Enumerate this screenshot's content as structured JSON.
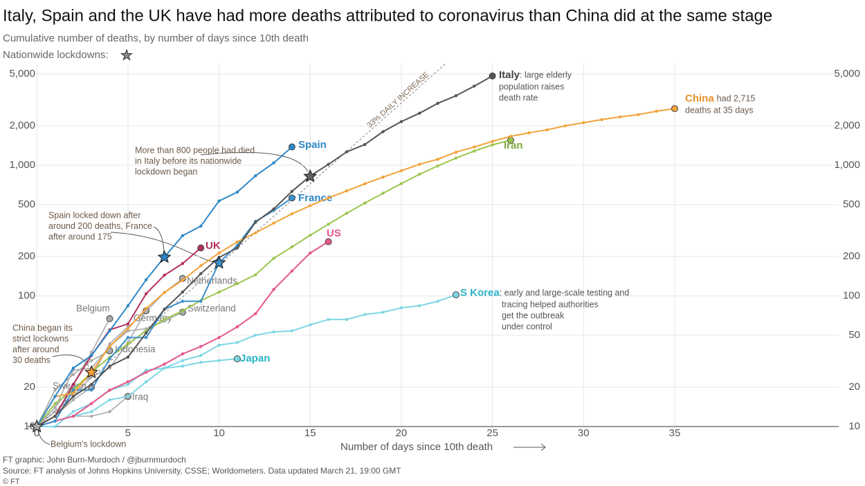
{
  "title": "Italy, Spain and the UK have had more deaths attributed to coronavirus than China did at the same stage",
  "subtitle": "Cumulative number of deaths, by number of days since 10th death",
  "legend_note": "Nationwide lockdowns:",
  "chart_data": {
    "type": "line",
    "x_label": "Number of days since 10th death",
    "log_scale": true,
    "grid": true,
    "x": [
      0,
      1,
      2,
      3,
      4,
      5,
      6,
      7,
      8,
      9,
      10,
      11,
      12,
      13,
      14,
      15,
      16,
      17,
      18,
      19,
      20,
      21,
      22,
      23,
      24,
      25,
      26,
      27,
      28,
      29,
      30,
      31,
      32,
      33,
      34,
      35
    ],
    "xlim": [
      -0.5,
      44
    ],
    "xticks": [
      0,
      5,
      10,
      15,
      20,
      25,
      30,
      35
    ],
    "ylim": [
      10,
      6000
    ],
    "yticks": [
      {
        "value": 5000,
        "label": "5,000"
      },
      {
        "value": 2000,
        "label": "2,000"
      },
      {
        "value": 1000,
        "label": "1,000"
      },
      500,
      200,
      100,
      20,
      10
    ],
    "y2lim": [
      10,
      6000
    ],
    "y2ticks": [
      {
        "value": 5000,
        "label": "5,000"
      },
      {
        "value": 2000,
        "label": "2,000"
      },
      {
        "value": 1000,
        "label": "1,000"
      },
      500,
      200,
      100,
      50,
      20,
      10
    ],
    "series": [
      {
        "name": "Netherlands",
        "color": "#aaaaaa",
        "values": [
          10,
          12,
          20,
          24,
          43,
          58,
          76,
          106,
          136,
          null,
          null,
          null,
          null,
          null,
          null,
          null,
          null,
          null,
          null,
          null,
          null,
          null,
          null,
          null,
          null,
          null,
          null,
          null,
          null,
          null,
          null,
          null,
          null,
          null,
          null,
          null
        ]
      },
      {
        "name": "Belgium",
        "color": "#aaaaaa",
        "values": [
          10,
          14,
          21,
          37,
          67,
          null,
          null,
          null,
          null,
          null,
          null,
          null,
          null,
          null,
          null,
          null,
          null,
          null,
          null,
          null,
          null,
          null,
          null,
          null,
          null,
          null,
          null,
          null,
          null,
          null,
          null,
          null,
          null,
          null,
          null,
          null
        ]
      },
      {
        "name": "Germany",
        "color": "#aaaaaa",
        "values": [
          10,
          13,
          17,
          24,
          28,
          44,
          77,
          null,
          null,
          null,
          null,
          null,
          null,
          null,
          null,
          null,
          null,
          null,
          null,
          null,
          null,
          null,
          null,
          null,
          null,
          null,
          null,
          null,
          null,
          null,
          null,
          null,
          null,
          null,
          null,
          null
        ]
      },
      {
        "name": "Switzerland",
        "color": "#aaaaaa",
        "values": [
          10,
          14,
          27,
          28,
          41,
          54,
          56,
          64,
          75,
          null,
          null,
          null,
          null,
          null,
          null,
          null,
          null,
          null,
          null,
          null,
          null,
          null,
          null,
          null,
          null,
          null,
          null,
          null,
          null,
          null,
          null,
          null,
          null,
          null,
          null,
          null
        ]
      },
      {
        "name": "Indonesia",
        "color": "#aaaaaa",
        "values": [
          10,
          19,
          25,
          32,
          38,
          null,
          null,
          null,
          null,
          null,
          null,
          null,
          null,
          null,
          null,
          null,
          null,
          null,
          null,
          null,
          null,
          null,
          null,
          null,
          null,
          null,
          null,
          null,
          null,
          null,
          null,
          null,
          null,
          null,
          null,
          null
        ]
      },
      {
        "name": "Sweden",
        "color": "#aaaaaa",
        "values": [
          10,
          12,
          16,
          20,
          null,
          null,
          null,
          null,
          null,
          null,
          null,
          null,
          null,
          null,
          null,
          null,
          null,
          null,
          null,
          null,
          null,
          null,
          null,
          null,
          null,
          null,
          null,
          null,
          null,
          null,
          null,
          null,
          null,
          null,
          null,
          null
        ]
      },
      {
        "name": "Iraq",
        "color": "#aaaaaa",
        "values": [
          10,
          11,
          12,
          12,
          13,
          17,
          null,
          null,
          null,
          null,
          null,
          null,
          null,
          null,
          null,
          null,
          null,
          null,
          null,
          null,
          null,
          null,
          null,
          null,
          null,
          null,
          null,
          null,
          null,
          null,
          null,
          null,
          null,
          null,
          null,
          null
        ]
      },
      {
        "name": "Japan",
        "color": "#7dd6e4",
        "label_color": "#2bb3c6",
        "values": [
          10,
          10,
          13,
          15,
          19,
          21,
          27,
          28,
          29,
          31,
          32,
          33,
          null,
          null,
          null,
          null,
          null,
          null,
          null,
          null,
          null,
          null,
          null,
          null,
          null,
          null,
          null,
          null,
          null,
          null,
          null,
          null,
          null,
          null,
          null,
          null
        ]
      },
      {
        "name": "S Korea",
        "color": "#7dd6e4",
        "label_color": "#2bb3c6",
        "note": [
          ": early and large-scale testing and",
          "tracing helped authorities",
          "get the outbreak",
          "under control"
        ],
        "values": [
          10,
          11,
          12,
          13,
          16,
          17,
          22,
          28,
          32,
          35,
          42,
          44,
          50,
          53,
          54,
          60,
          66,
          66,
          72,
          75,
          81,
          84,
          91,
          102,
          null,
          null,
          null,
          null,
          null,
          null,
          null,
          null,
          null,
          null,
          null,
          null
        ]
      },
      {
        "name": "Iran",
        "color": "#9cc54e",
        "label_color": "#7fa83a",
        "values": [
          10,
          15,
          19,
          26,
          34,
          43,
          54,
          66,
          77,
          92,
          107,
          124,
          145,
          194,
          237,
          291,
          354,
          429,
          514,
          611,
          724,
          853,
          988,
          1135,
          1284,
          1433,
          1556,
          null,
          null,
          null,
          null,
          null,
          null,
          null,
          null,
          null
        ]
      },
      {
        "name": "US",
        "color": "#e6568c",
        "label_color": "#e6568c",
        "values": [
          10,
          11,
          12,
          15,
          19,
          22,
          26,
          30,
          36,
          41,
          48,
          58,
          73,
          112,
          155,
          213,
          260,
          null,
          null,
          null,
          null,
          null,
          null,
          null,
          null,
          null,
          null,
          null,
          null,
          null,
          null,
          null,
          null,
          null,
          null,
          null
        ]
      },
      {
        "name": "UK",
        "color": "#b3305e",
        "label_color": "#b3305e",
        "values": [
          10,
          12,
          21,
          35,
          55,
          61,
          104,
          144,
          177,
          233,
          null,
          null,
          null,
          null,
          null,
          null,
          null,
          null,
          null,
          null,
          null,
          null,
          null,
          null,
          null,
          null,
          null,
          null,
          null,
          null,
          null,
          null,
          null,
          null,
          null,
          null
        ]
      },
      {
        "name": "France",
        "color": "#3a8fcc",
        "label_color": "#2c86c6",
        "values": [
          10,
          11,
          19,
          19,
          33,
          48,
          48,
          79,
          91,
          91,
          179,
          244,
          372,
          450,
          562,
          null,
          null,
          null,
          null,
          null,
          null,
          null,
          null,
          null,
          null,
          null,
          null,
          null,
          null,
          null,
          null,
          null,
          null,
          null,
          null,
          null
        ]
      },
      {
        "name": "China",
        "color": "#f2a33a",
        "label_color": "#e8912b",
        "note": [
          "had 2,715",
          "deaths at 35 days"
        ],
        "values": [
          10,
          17,
          18,
          26,
          41,
          56,
          80,
          106,
          132,
          170,
          213,
          259,
          304,
          361,
          425,
          490,
          563,
          636,
          722,
          811,
          908,
          1016,
          1113,
          1259,
          1380,
          1523,
          1665,
          1770,
          1868,
          2004,
          2118,
          2236,
          2345,
          2442,
          2592,
          2715
        ]
      },
      {
        "name": "Spain",
        "color": "#2e88c8",
        "label_color": "#2c86c6",
        "values": [
          10,
          17,
          28,
          35,
          54,
          84,
          133,
          198,
          289,
          342,
          533,
          623,
          830,
          1043,
          1381,
          null,
          null,
          null,
          null,
          null,
          null,
          null,
          null,
          null,
          null,
          null,
          null,
          null,
          null,
          null,
          null,
          null,
          null,
          null,
          null,
          null
        ]
      },
      {
        "name": "Italy",
        "color": "#555555",
        "label_color": "#444444",
        "note": [
          ": large elderly",
          "population raises",
          "death rate"
        ],
        "values": [
          10,
          12,
          17,
          21,
          29,
          34,
          52,
          79,
          107,
          148,
          197,
          233,
          366,
          463,
          631,
          827,
          1016,
          1266,
          1441,
          1809,
          2158,
          2503,
          2978,
          3405,
          4032,
          4825,
          null,
          null,
          null,
          null,
          null,
          null,
          null,
          null,
          null,
          null
        ]
      }
    ],
    "lockdowns": [
      {
        "x": 0,
        "y": 10
      },
      {
        "x": 3,
        "y": 26
      },
      {
        "x": 7,
        "y": 198
      },
      {
        "x": 10,
        "y": 179
      },
      {
        "x": 15,
        "y": 822
      }
    ],
    "reference_line": {
      "label": "33% DAILY INCREASE",
      "daily_increase_pct": 33,
      "start": 10
    },
    "annotations": [
      [
        "More than 800 people had died",
        "in Italy before its nationwide",
        "lockdown began"
      ],
      [
        "Spain locked down after",
        "around 200 deaths, France",
        "after around 175"
      ],
      [
        "China began its",
        "strict lockowns",
        "after around",
        "30 deaths"
      ],
      [
        "Belgium's lockdown"
      ]
    ]
  },
  "footer": [
    "FT graphic: John Burn-Murdoch / @jburnmurdoch",
    "Source: FT analysis of Johns Hopkins University, CSSE; Worldometers. Data updated March 21, 19:00 GMT",
    "© FT"
  ]
}
